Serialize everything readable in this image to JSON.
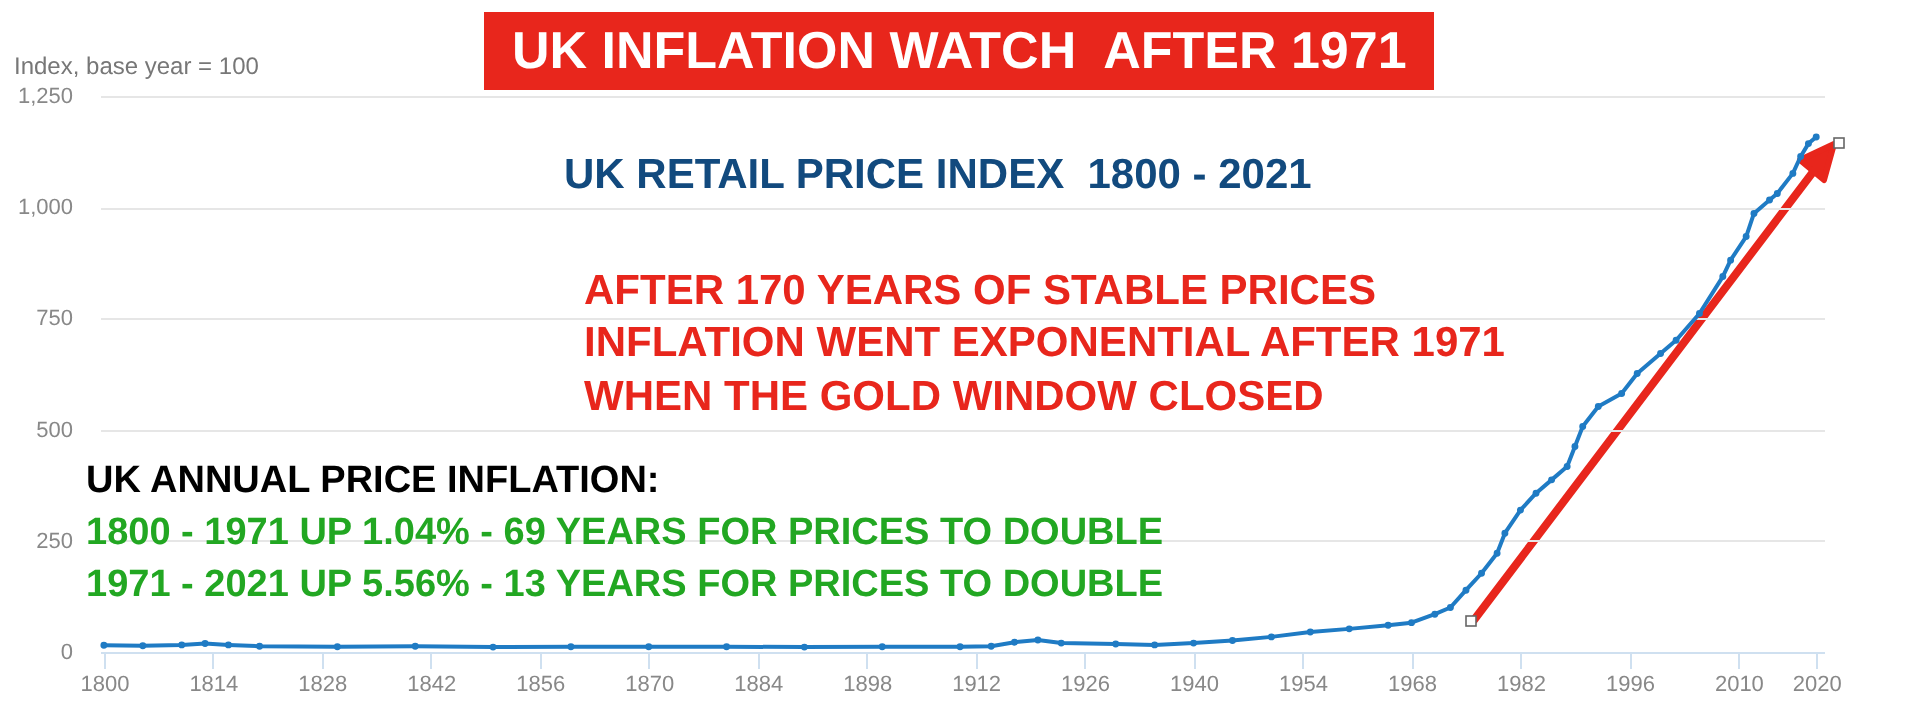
{
  "chart_data": {
    "type": "line",
    "title": "UK INFLATION WATCH  AFTER 1971",
    "subtitle": "UK RETAIL PRICE INDEX  1800 - 2021",
    "ylabel": "Index, base year = 100",
    "annotations": [
      "AFTER 170 YEARS OF STABLE PRICES",
      "INFLATION WENT EXPONENTIAL AFTER 1971",
      "WHEN THE GOLD WINDOW CLOSED",
      "UK ANNUAL PRICE INFLATION:",
      "1800 - 1971 UP 1.04% - 69 YEARS FOR PRICES TO DOUBLE",
      "1971 - 2021 UP 5.56% - 13 YEARS FOR PRICES TO DOUBLE"
    ],
    "x": [
      1800,
      1805,
      1810,
      1813,
      1816,
      1820,
      1830,
      1840,
      1850,
      1860,
      1870,
      1880,
      1890,
      1900,
      1910,
      1914,
      1917,
      1920,
      1923,
      1930,
      1935,
      1940,
      1945,
      1950,
      1955,
      1960,
      1965,
      1968,
      1971,
      1973,
      1975,
      1977,
      1979,
      1980,
      1982,
      1984,
      1986,
      1988,
      1989,
      1990,
      1992,
      1995,
      1997,
      2000,
      2002,
      2005,
      2008,
      2009,
      2011,
      2012,
      2014,
      2015,
      2017,
      2018,
      2019,
      2020
    ],
    "series": [
      {
        "color": "#1f7bc4",
        "values": [
          15,
          14,
          16,
          19,
          16,
          13,
          12,
          13,
          11,
          12,
          12,
          12,
          11,
          12,
          12,
          13,
          22,
          27,
          20,
          18,
          16,
          20,
          26,
          34,
          45,
          52,
          60,
          66,
          85,
          100,
          139,
          177,
          222,
          267,
          319,
          357,
          387,
          417,
          462,
          507,
          552,
          581,
          626,
          671,
          701,
          761,
          844,
          881,
          934,
          986,
          1016,
          1031,
          1076,
          1114,
          1143,
          1158
        ]
      }
    ],
    "xlim": [
      1799.5,
      2021
    ],
    "xticks": [
      1800,
      1814,
      1828,
      1842,
      1856,
      1870,
      1884,
      1898,
      1912,
      1926,
      1940,
      1954,
      1968,
      1982,
      1996,
      2010,
      2020
    ],
    "ylim": [
      0,
      1250
    ],
    "yticks": [
      0,
      250,
      500,
      750,
      {
        "value": 1000,
        "label": "1,000"
      },
      {
        "value": 1250,
        "label": "1,250"
      }
    ],
    "grid": "y",
    "marker": "circle"
  }
}
